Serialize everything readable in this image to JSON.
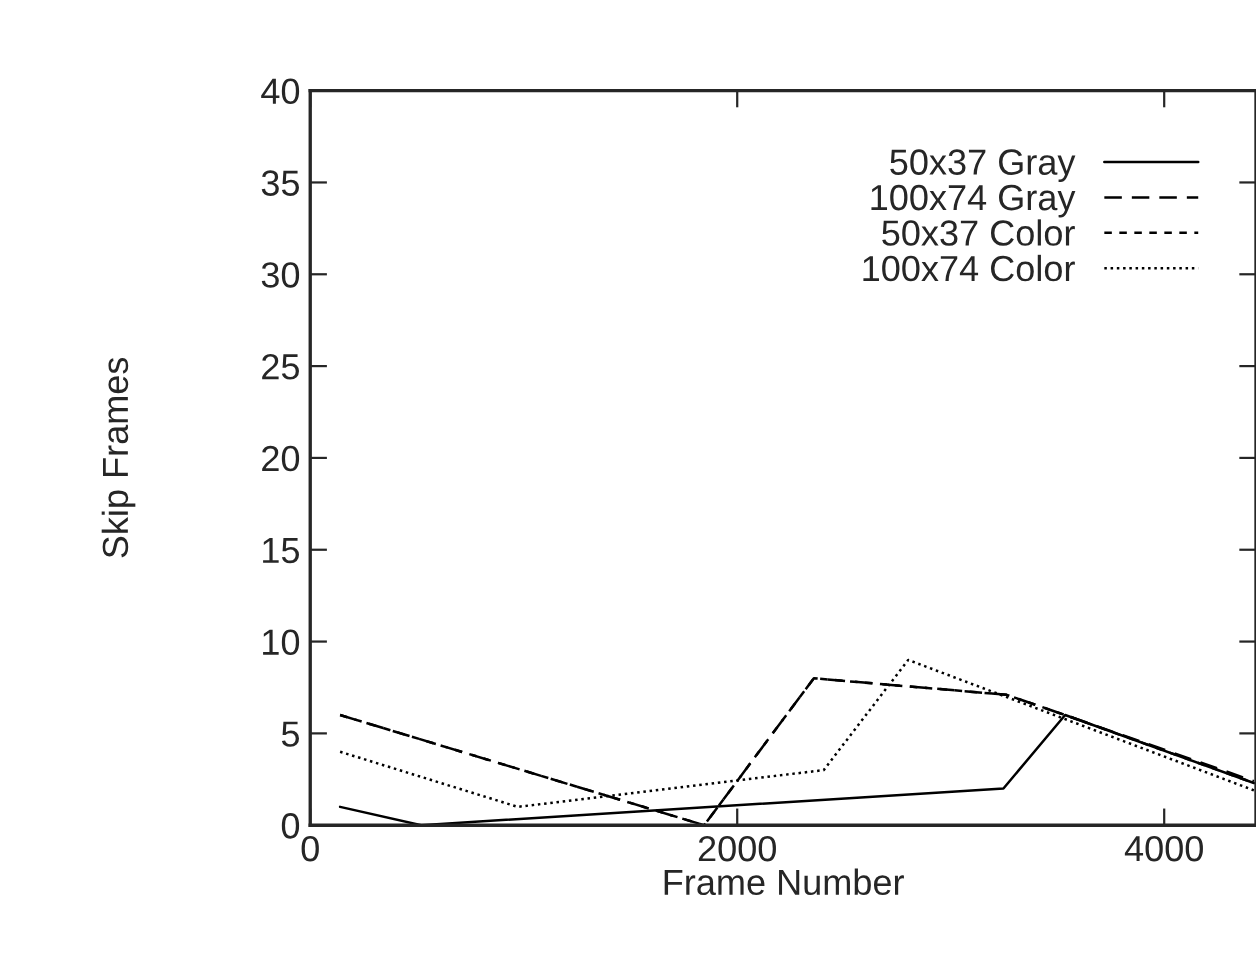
{
  "chart_data": {
    "type": "line",
    "xlabel": "Frame Number",
    "ylabel": "Skip Frames",
    "xlim": [
      0,
      4430
    ],
    "ylim": [
      0,
      40
    ],
    "xticks": [
      0,
      2000,
      4000
    ],
    "yticks": [
      0,
      5,
      10,
      15,
      20,
      25,
      30,
      35,
      40
    ],
    "grid": false,
    "legend": "top right",
    "marker": "none",
    "series": [
      {
        "name": "50x37 Gray",
        "color": "#000000",
        "line_style": "solid",
        "x": [
          140,
          520,
          3247,
          3536,
          4420
        ],
        "values": [
          1,
          0,
          2,
          6,
          2.3
        ]
      },
      {
        "name": "100x74 Gray",
        "color": "#000000",
        "line_style": "long_dashed",
        "x": [
          140,
          1845,
          2359,
          3262,
          3536,
          4420
        ],
        "values": [
          6,
          0,
          8,
          7.1,
          6,
          2.4
        ]
      },
      {
        "name": "50x37 Color",
        "color": "#000000",
        "line_style": "dashed",
        "x": [
          140,
          1845,
          2359,
          3262,
          3536,
          4420
        ],
        "values": [
          6,
          0,
          8,
          7.1,
          6,
          2.3
        ]
      },
      {
        "name": "100x74 Color",
        "color": "#000000",
        "line_style": "dotted",
        "x": [
          140,
          972,
          2405,
          2801,
          4420
        ],
        "values": [
          4,
          1,
          3,
          9,
          1.9
        ]
      }
    ]
  }
}
